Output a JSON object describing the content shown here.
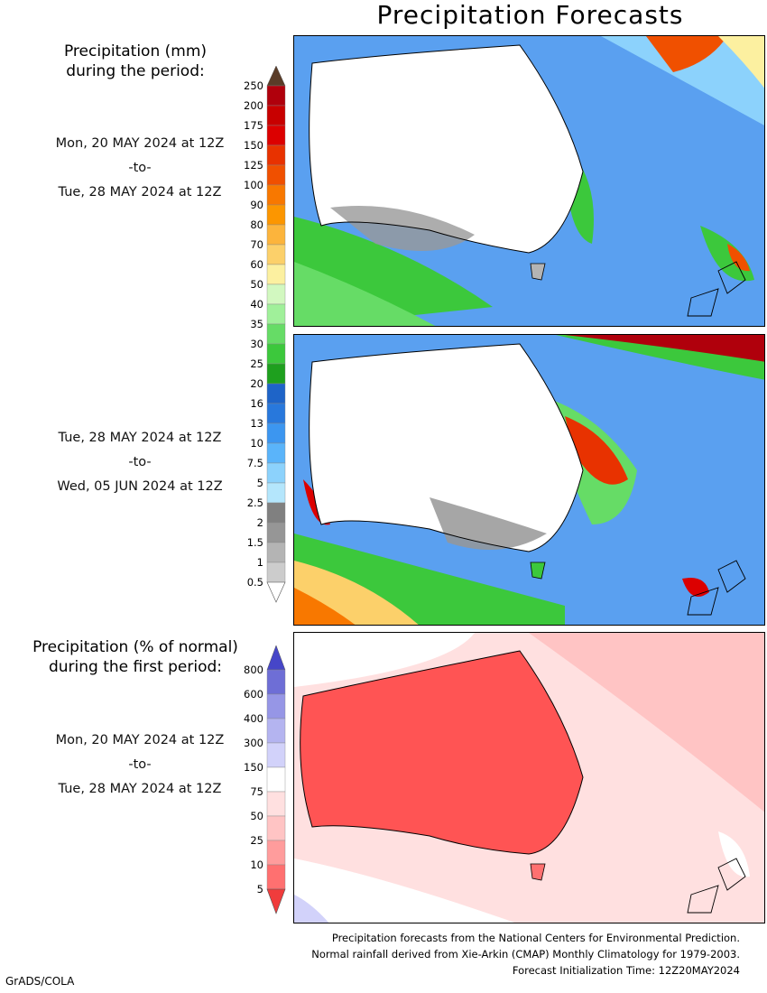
{
  "title": "Precipitation Forecasts",
  "heading_mm": [
    "Precipitation (mm)",
    "during the period:"
  ],
  "heading_pct": [
    "Precipitation (% of normal)",
    "during the first period:"
  ],
  "periods": [
    {
      "start": "Mon, 20 MAY 2024 at 12Z",
      "sep": "-to-",
      "end": "Tue, 28 MAY 2024 at 12Z"
    },
    {
      "start": "Tue, 28 MAY 2024 at 12Z",
      "sep": "-to-",
      "end": "Wed, 05 JUN 2024 at 12Z"
    },
    {
      "start": "Mon, 20 MAY 2024 at 12Z",
      "sep": "-to-",
      "end": "Tue, 28 MAY 2024 at 12Z"
    }
  ],
  "legend_mm": {
    "labels": [
      "250",
      "200",
      "175",
      "150",
      "125",
      "100",
      "90",
      "80",
      "70",
      "60",
      "50",
      "40",
      "35",
      "30",
      "25",
      "20",
      "16",
      "13",
      "10",
      "7.5",
      "5",
      "2.5",
      "2",
      "1.5",
      "1",
      "0.5"
    ],
    "colors": [
      "#b0000c",
      "#c80000",
      "#dc0000",
      "#e83200",
      "#f05000",
      "#f87800",
      "#fc9600",
      "#fcb43c",
      "#fcd06a",
      "#fcf0a0",
      "#d2f8c0",
      "#a0f09a",
      "#66dc66",
      "#3cc83c",
      "#1ea01e",
      "#1e64c8",
      "#2878dc",
      "#3c96f0",
      "#5ab4fa",
      "#8cd2fc",
      "#b4e6fc",
      "#808080",
      "#969696",
      "#b4b4b4",
      "#cccccc"
    ],
    "top_color": "#5a3c28",
    "bottom_color": "#ffffff"
  },
  "legend_pct": {
    "labels": [
      "800",
      "600",
      "400",
      "300",
      "150",
      "75",
      "50",
      "25",
      "10",
      "5"
    ],
    "colors": [
      "#6e6ed6",
      "#9696e6",
      "#b4b4f0",
      "#d2d2fa",
      "#ffffff",
      "#ffe0e0",
      "#ffc4c4",
      "#ff9c9c",
      "#ff7070"
    ],
    "top_color": "#4646c8",
    "bottom_color": "#f03c3c"
  },
  "footer": [
    "Precipitation forecasts from the National Centers for Environmental Prediction.",
    "Normal rainfall derived from Xie-Arkin (CMAP) Monthly Climatology for 1979-2003.",
    "Forecast Initialization Time: 12Z20MAY2024"
  ],
  "credit": "GrADS/COLA"
}
